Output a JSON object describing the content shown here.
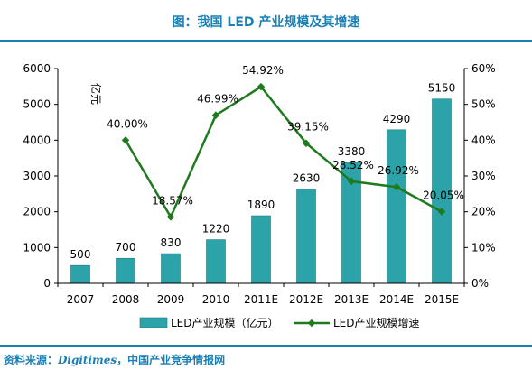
{
  "title": "图：我国 LED 产业规模及其增速",
  "source": {
    "prefix": "资料来源：",
    "italic": "Digitimes",
    "suffix": "，中国产业竞争情报网"
  },
  "colors": {
    "accent": "#1a7fb5",
    "bar": "#2ba3a8",
    "line": "#1f7a1f"
  },
  "chart_data": {
    "type": "bar",
    "categories": [
      "2007",
      "2008",
      "2009",
      "2010",
      "2011E",
      "2012E",
      "2013E",
      "2014E",
      "2015E"
    ],
    "series": [
      {
        "name": "LED产业规模（亿元）",
        "type": "bar",
        "axis": "left",
        "values": [
          500,
          700,
          830,
          1220,
          1890,
          2630,
          3380,
          4290,
          5150
        ],
        "labels": [
          "500",
          "700",
          "830",
          "1220",
          "1890",
          "2630",
          "3380",
          "4290",
          "5150"
        ]
      },
      {
        "name": "LED产业规模增速",
        "type": "line",
        "axis": "right",
        "values": [
          null,
          40.0,
          18.57,
          46.99,
          54.92,
          39.15,
          28.52,
          26.92,
          20.05
        ],
        "labels": [
          null,
          "40.00%",
          "18.57%",
          "46.99%",
          "54.92%",
          "39.15%",
          "28.52%",
          "26.92%",
          "20.05%"
        ]
      }
    ],
    "ylabel": "亿元",
    "ylim": [
      0,
      6000
    ],
    "y_ticks": [
      "0",
      "1000",
      "2000",
      "3000",
      "4000",
      "5000",
      "6000"
    ],
    "y2lim": [
      0,
      60
    ],
    "y2_ticks": [
      "0%",
      "10%",
      "20%",
      "30%",
      "40%",
      "50%",
      "60%"
    ],
    "grid": false,
    "legend_position": "bottom"
  }
}
